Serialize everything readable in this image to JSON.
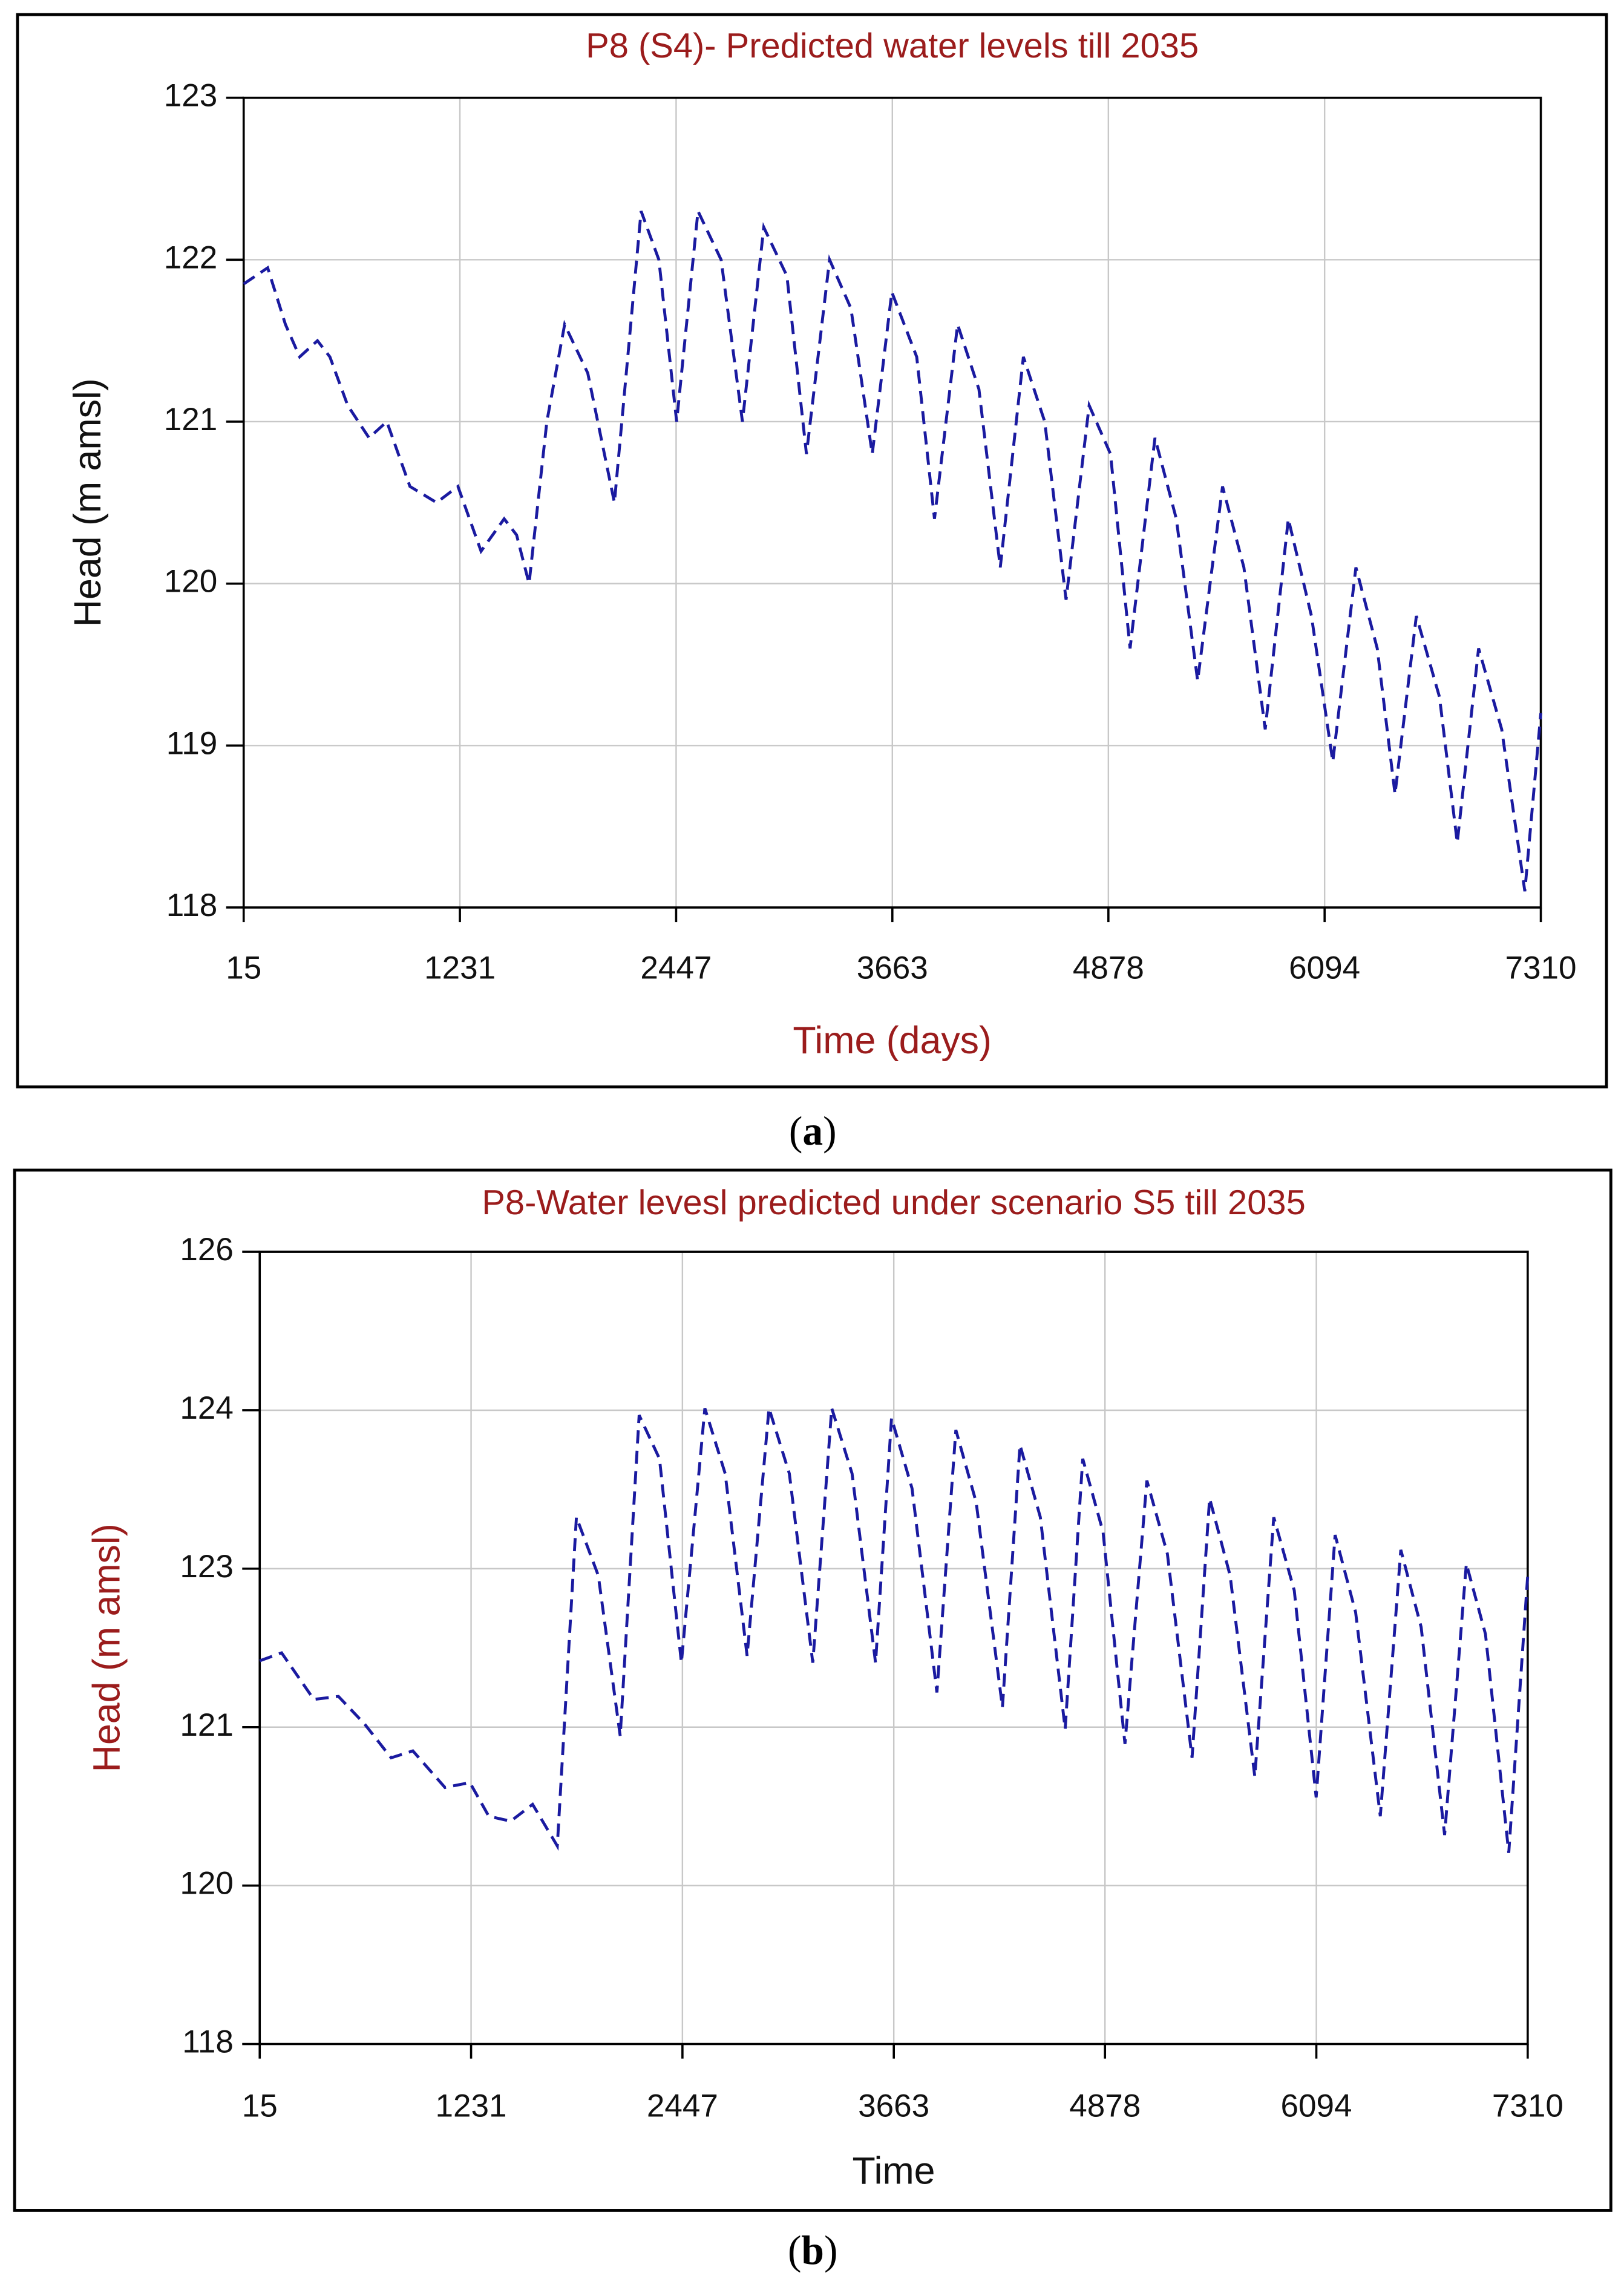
{
  "chart_data": [
    {
      "type": "line",
      "title": "P8 (S4)- Predicted water levels till 2035",
      "x_label": "Time (days)",
      "y_label": "Head (m amsl)",
      "caption": "a",
      "color": "#1a1aa0",
      "dashed": true,
      "grid": true,
      "xlim": [
        15,
        7310
      ],
      "xticks": [
        15,
        1231,
        2447,
        3663,
        4878,
        6094,
        7310
      ],
      "ylim": [
        118,
        123
      ],
      "yticks": [
        118,
        119,
        120,
        121,
        122,
        123
      ],
      "x": [
        15,
        150,
        250,
        330,
        430,
        500,
        600,
        720,
        820,
        950,
        1100,
        1220,
        1350,
        1480,
        1550,
        1620,
        1720,
        1820,
        1950,
        2100,
        2250,
        2350,
        2450,
        2570,
        2700,
        2820,
        2940,
        3070,
        3180,
        3310,
        3430,
        3550,
        3660,
        3800,
        3900,
        4030,
        4150,
        4270,
        4400,
        4520,
        4640,
        4770,
        4890,
        5000,
        5140,
        5260,
        5380,
        5520,
        5640,
        5760,
        5890,
        6020,
        6140,
        6270,
        6390,
        6490,
        6610,
        6740,
        6840,
        6960,
        7090,
        7220,
        7310
      ],
      "values": [
        121.85,
        121.95,
        121.6,
        121.4,
        121.5,
        121.4,
        121.1,
        120.9,
        121.0,
        120.6,
        120.5,
        120.6,
        120.2,
        120.4,
        120.3,
        120.0,
        121.0,
        121.6,
        121.3,
        120.5,
        122.3,
        122.0,
        121.0,
        122.3,
        122.0,
        121.0,
        122.2,
        121.9,
        120.8,
        122.0,
        121.7,
        120.8,
        121.8,
        121.4,
        120.4,
        121.6,
        121.2,
        120.1,
        121.4,
        121.0,
        119.9,
        121.1,
        120.8,
        119.6,
        120.9,
        120.4,
        119.4,
        120.6,
        120.1,
        119.1,
        120.4,
        119.8,
        118.9,
        120.1,
        119.6,
        118.7,
        119.8,
        119.3,
        118.4,
        119.6,
        119.1,
        118.1,
        119.2
      ]
    },
    {
      "type": "line",
      "title": "P8-Water levesl predicted under scenario S5 till 2035",
      "x_label": "Time",
      "y_label": "Head (m amsl)",
      "caption": "b",
      "color": "#1a1aa0",
      "dashed": true,
      "grid": true,
      "xlim": [
        15,
        7310
      ],
      "xticks": [
        15,
        1231,
        2447,
        3663,
        4878,
        6094,
        7310
      ],
      "ylim": [
        118,
        126
      ],
      "yticks": [
        {
          "value": 118,
          "label": "118"
        },
        {
          "value": 119.6,
          "label": "120"
        },
        {
          "value": 121.2,
          "label": "121"
        },
        {
          "value": 122.8,
          "label": "123"
        },
        {
          "value": 124.4,
          "label": "124"
        },
        {
          "value": 126,
          "label": "126"
        }
      ],
      "x": [
        15,
        141,
        326,
        468,
        619,
        771,
        896,
        1081,
        1224,
        1333,
        1459,
        1585,
        1727,
        1837,
        1963,
        2089,
        2198,
        2315,
        2441,
        2576,
        2693,
        2819,
        2945,
        3062,
        3197,
        3306,
        3423,
        3558,
        3650,
        3768,
        3911,
        4020,
        4137,
        4288,
        4389,
        4506,
        4649,
        4750,
        4867,
        4993,
        5119,
        5237,
        5379,
        5480,
        5598,
        5740,
        5849,
        5967,
        6093,
        6202,
        6320,
        6462,
        6580,
        6697,
        6832,
        6957,
        7067,
        7201,
        7310
      ],
      "values": [
        121.87,
        121.95,
        121.48,
        121.51,
        121.23,
        120.89,
        120.96,
        120.59,
        120.64,
        120.3,
        120.25,
        120.42,
        120.0,
        123.32,
        122.73,
        121.11,
        124.35,
        123.91,
        121.85,
        124.42,
        123.76,
        121.92,
        124.42,
        123.76,
        121.85,
        124.42,
        123.76,
        121.85,
        124.32,
        123.61,
        121.55,
        124.2,
        123.47,
        121.4,
        124.05,
        123.32,
        121.18,
        123.91,
        123.17,
        121.03,
        123.69,
        122.95,
        120.89,
        123.51,
        122.73,
        120.7,
        123.32,
        122.58,
        120.49,
        123.14,
        122.36,
        120.3,
        122.99,
        122.21,
        120.11,
        122.85,
        122.14,
        119.93,
        122.73
      ]
    }
  ]
}
